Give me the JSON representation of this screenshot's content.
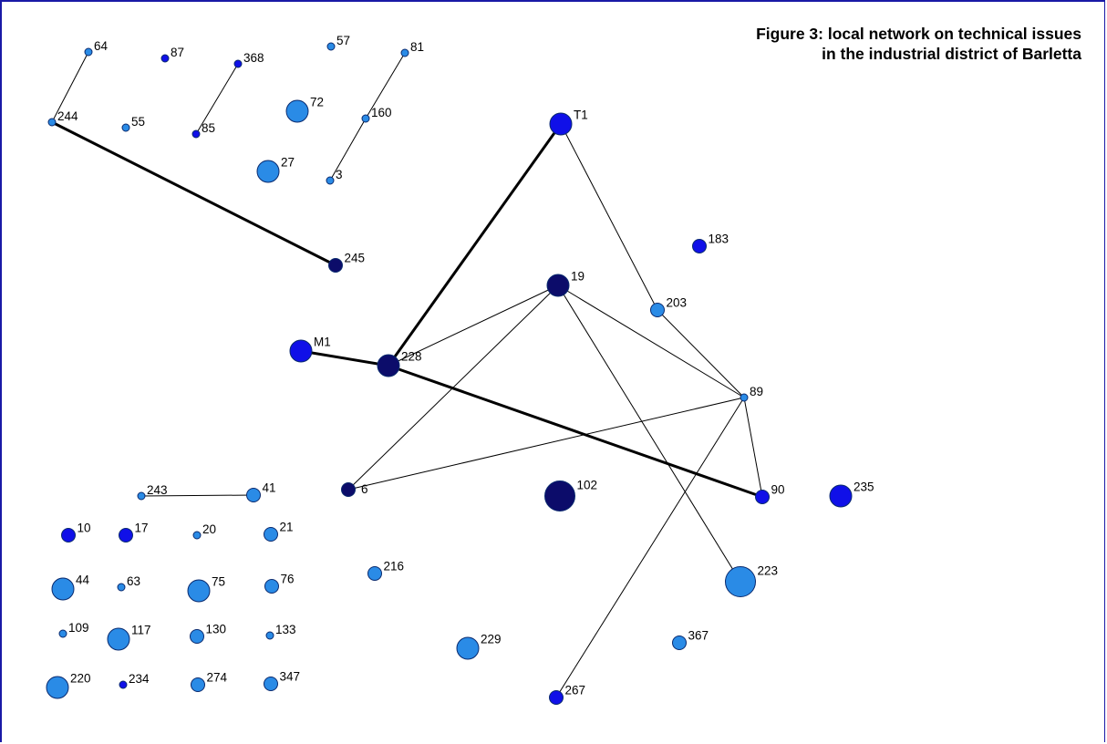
{
  "title": {
    "line1": "Figure 3: local network on technical issues",
    "line2": "in the industrial district of Barletta"
  },
  "colors": {
    "light": "#2a8be6",
    "medium": "#1010e8",
    "dark": "#0c0c6a",
    "node_outline": "#0a2a6e",
    "edge": "#000000",
    "frame": "#1a1aa6"
  },
  "nodes": [
    {
      "id": "64",
      "label": "64",
      "shade": "light",
      "size": "small"
    },
    {
      "id": "87",
      "label": "87",
      "shade": "medium",
      "size": "small"
    },
    {
      "id": "368",
      "label": "368",
      "shade": "medium",
      "size": "small"
    },
    {
      "id": "57",
      "label": "57",
      "shade": "light",
      "size": "small"
    },
    {
      "id": "81",
      "label": "81",
      "shade": "light",
      "size": "small"
    },
    {
      "id": "244",
      "label": "244",
      "shade": "light",
      "size": "small"
    },
    {
      "id": "55",
      "label": "55",
      "shade": "light",
      "size": "small"
    },
    {
      "id": "85",
      "label": "85",
      "shade": "medium",
      "size": "small"
    },
    {
      "id": "72",
      "label": "72",
      "shade": "light",
      "size": "large"
    },
    {
      "id": "160",
      "label": "160",
      "shade": "light",
      "size": "small"
    },
    {
      "id": "27",
      "label": "27",
      "shade": "light",
      "size": "large"
    },
    {
      "id": "3",
      "label": "3",
      "shade": "light",
      "size": "small"
    },
    {
      "id": "T1",
      "label": "T1",
      "shade": "medium",
      "size": "large"
    },
    {
      "id": "183",
      "label": "183",
      "shade": "medium",
      "size": "medium"
    },
    {
      "id": "245",
      "label": "245",
      "shade": "dark",
      "size": "medium"
    },
    {
      "id": "19",
      "label": "19",
      "shade": "dark",
      "size": "large"
    },
    {
      "id": "203",
      "label": "203",
      "shade": "light",
      "size": "medium"
    },
    {
      "id": "M1",
      "label": "M1",
      "shade": "medium",
      "size": "large"
    },
    {
      "id": "228",
      "label": "228",
      "shade": "dark",
      "size": "large"
    },
    {
      "id": "89",
      "label": "89",
      "shade": "light",
      "size": "small"
    },
    {
      "id": "6",
      "label": "6",
      "shade": "dark",
      "size": "medium"
    },
    {
      "id": "102",
      "label": "102",
      "shade": "dark",
      "size": "xlarge"
    },
    {
      "id": "90",
      "label": "90",
      "shade": "medium",
      "size": "medium"
    },
    {
      "id": "235",
      "label": "235",
      "shade": "medium",
      "size": "large"
    },
    {
      "id": "243",
      "label": "243",
      "shade": "light",
      "size": "small"
    },
    {
      "id": "41",
      "label": "41",
      "shade": "light",
      "size": "medium"
    },
    {
      "id": "10",
      "label": "10",
      "shade": "medium",
      "size": "medium"
    },
    {
      "id": "17",
      "label": "17",
      "shade": "medium",
      "size": "medium"
    },
    {
      "id": "20",
      "label": "20",
      "shade": "light",
      "size": "small"
    },
    {
      "id": "21",
      "label": "21",
      "shade": "light",
      "size": "medium"
    },
    {
      "id": "216",
      "label": "216",
      "shade": "light",
      "size": "medium"
    },
    {
      "id": "223",
      "label": "223",
      "shade": "light",
      "size": "xlarge"
    },
    {
      "id": "44",
      "label": "44",
      "shade": "light",
      "size": "large"
    },
    {
      "id": "63",
      "label": "63",
      "shade": "light",
      "size": "small"
    },
    {
      "id": "75",
      "label": "75",
      "shade": "light",
      "size": "large"
    },
    {
      "id": "76",
      "label": "76",
      "shade": "light",
      "size": "medium"
    },
    {
      "id": "109",
      "label": "109",
      "shade": "light",
      "size": "small"
    },
    {
      "id": "117",
      "label": "117",
      "shade": "light",
      "size": "large"
    },
    {
      "id": "130",
      "label": "130",
      "shade": "light",
      "size": "medium"
    },
    {
      "id": "133",
      "label": "133",
      "shade": "light",
      "size": "small"
    },
    {
      "id": "229",
      "label": "229",
      "shade": "light",
      "size": "large"
    },
    {
      "id": "367",
      "label": "367",
      "shade": "light",
      "size": "medium"
    },
    {
      "id": "220",
      "label": "220",
      "shade": "light",
      "size": "large"
    },
    {
      "id": "234",
      "label": "234",
      "shade": "medium",
      "size": "small"
    },
    {
      "id": "274",
      "label": "274",
      "shade": "light",
      "size": "medium"
    },
    {
      "id": "347",
      "label": "347",
      "shade": "light",
      "size": "medium"
    },
    {
      "id": "267",
      "label": "267",
      "shade": "medium",
      "size": "medium"
    }
  ],
  "edges": [
    {
      "source": "244",
      "target": "64",
      "weight": "thin"
    },
    {
      "source": "244",
      "target": "245",
      "weight": "thick"
    },
    {
      "source": "85",
      "target": "368",
      "weight": "thin"
    },
    {
      "source": "81",
      "target": "160",
      "weight": "thin"
    },
    {
      "source": "160",
      "target": "3",
      "weight": "thin"
    },
    {
      "source": "T1",
      "target": "228",
      "weight": "thick"
    },
    {
      "source": "T1",
      "target": "203",
      "weight": "thin"
    },
    {
      "source": "203",
      "target": "89",
      "weight": "thin"
    },
    {
      "source": "19",
      "target": "228",
      "weight": "thin"
    },
    {
      "source": "19",
      "target": "6",
      "weight": "thin"
    },
    {
      "source": "19",
      "target": "89",
      "weight": "thin"
    },
    {
      "source": "19",
      "target": "223",
      "weight": "thin"
    },
    {
      "source": "M1",
      "target": "228",
      "weight": "thick"
    },
    {
      "source": "228",
      "target": "90",
      "weight": "thick"
    },
    {
      "source": "6",
      "target": "89",
      "weight": "thin"
    },
    {
      "source": "89",
      "target": "90",
      "weight": "thin"
    },
    {
      "source": "89",
      "target": "267",
      "weight": "thin"
    },
    {
      "source": "243",
      "target": "41",
      "weight": "thin"
    }
  ]
}
